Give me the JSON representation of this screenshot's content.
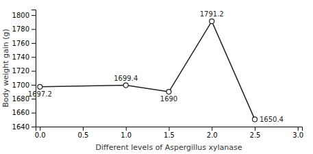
{
  "chart_data": {
    "type": "line",
    "xlabel": "Different levels of Aspergillus xylanase",
    "ylabel": "Body weight gain (g)",
    "x": [
      0,
      1.0,
      1.5,
      2.0,
      2.5
    ],
    "values": [
      1697.2,
      1699.4,
      1690,
      1791.2,
      1650.4
    ],
    "color": "#222222",
    "marker": "circle",
    "data_labels": true,
    "grid": false,
    "xlim": [
      -0.05,
      3.05
    ],
    "ylim": [
      1640,
      1808
    ],
    "xticks": [
      {
        "value": 0,
        "label": "0.0"
      },
      0.5,
      {
        "value": 1.0,
        "label": "1.0"
      },
      1.5,
      {
        "value": 2.0,
        "label": "2.0"
      },
      2.5,
      {
        "value": 3.0,
        "label": "3.0"
      }
    ],
    "yticks": [
      1640,
      1660,
      1680,
      1700,
      1720,
      1740,
      1760,
      1780,
      1800
    ]
  }
}
